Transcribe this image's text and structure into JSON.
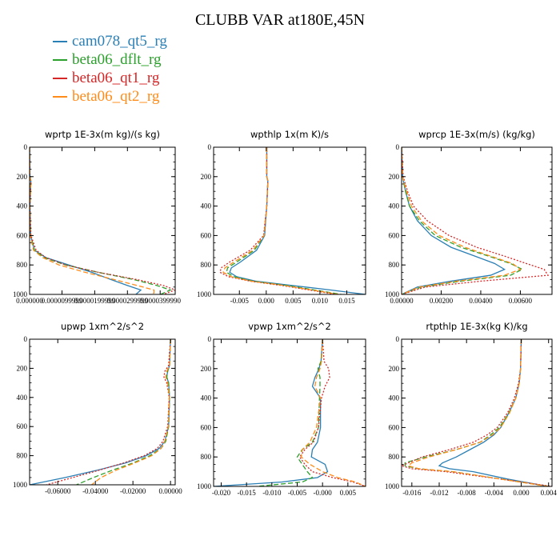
{
  "title": "CLUBB VAR at180E,45N",
  "legend": [
    {
      "name": "cam078_qt5_rg",
      "color": "#2a7fb5"
    },
    {
      "name": "beta06_dflt_rg",
      "color": "#2ca02c"
    },
    {
      "name": "beta06_qt1_rg",
      "color": "#d62728"
    },
    {
      "name": "beta06_qt2_rg",
      "color": "#ff8c1a"
    }
  ],
  "chart_data": [
    {
      "type": "line",
      "title": "wprtp  1E-3x(m kg)/(s kg)",
      "xlim": [
        0,
        4.45e-05
      ],
      "ylim": [
        0,
        1000
      ],
      "y_inverted": true,
      "x_ticks": [
        0,
        9.9e-06,
        1.99e-05,
        2.99e-05,
        3.99e-05
      ],
      "x_tick_labels": [
        "0.000000",
        "0.0000099999",
        "0.0000199999",
        "0.0000299999",
        "0.0000399990"
      ],
      "y_ticks": [
        0,
        200,
        400,
        600,
        800,
        1000
      ],
      "y": [
        0,
        200,
        230,
        400,
        600,
        700,
        750,
        800,
        850,
        900,
        940,
        970,
        990,
        1000
      ],
      "series": [
        {
          "name": "cam078_qt5_rg",
          "values": [
            0,
            1e-07,
            4e-07,
            1e-07,
            3e-07,
            1.5e-06,
            5e-06,
            1.2e-05,
            1.9e-05,
            2.5e-05,
            3e-05,
            3.4e-05,
            3.3e-05,
            3.25e-05
          ]
        },
        {
          "name": "beta06_dflt_rg",
          "values": [
            0,
            1e-07,
            4e-07,
            1e-07,
            3e-07,
            1.5e-06,
            4.5e-06,
            1.1e-05,
            2.1e-05,
            3.2e-05,
            3.9e-05,
            4.3e-05,
            4.1e-05,
            4e-05
          ]
        },
        {
          "name": "beta06_qt1_rg",
          "values": [
            0,
            1e-07,
            4e-07,
            1e-07,
            4e-07,
            2e-06,
            5e-06,
            1.1e-05,
            2.1e-05,
            3.3e-05,
            4.1e-05,
            4.45e-05,
            4.2e-05,
            4.1e-05
          ]
        },
        {
          "name": "beta06_qt2_rg",
          "values": [
            0,
            1e-07,
            4e-07,
            1e-07,
            2e-07,
            1.2e-06,
            4e-06,
            9e-06,
            1.7e-05,
            2.6e-05,
            3.3e-05,
            3.8e-05,
            3.8e-05,
            3.7e-05
          ]
        }
      ]
    },
    {
      "type": "line",
      "title": "wpthlp  1x(m K)/s",
      "xlim": [
        -0.0098,
        0.0185
      ],
      "ylim": [
        0,
        1000
      ],
      "y_inverted": true,
      "x_ticks": [
        -0.005,
        0,
        0.005,
        0.01,
        0.015
      ],
      "x_tick_labels": [
        "-0.005",
        "0.000",
        "0.005",
        "0.010",
        "0.015"
      ],
      "y_ticks": [
        0,
        200,
        400,
        600,
        800,
        1000
      ],
      "y": [
        0,
        200,
        230,
        400,
        600,
        700,
        780,
        820,
        850,
        880,
        910,
        940,
        970,
        1000
      ],
      "series": [
        {
          "name": "cam078_qt5_rg",
          "values": [
            0.0001,
            0.0001,
            0.0003,
            0.0001,
            -0.0003,
            -0.0018,
            -0.0048,
            -0.0065,
            -0.0068,
            -0.0055,
            -0.002,
            0.005,
            0.012,
            0.0185
          ]
        },
        {
          "name": "beta06_dflt_rg",
          "values": [
            0.0001,
            0.0001,
            0.0003,
            0.0001,
            -0.0004,
            -0.0022,
            -0.0055,
            -0.0072,
            -0.0074,
            -0.006,
            -0.0025,
            0.004,
            0.009,
            0.014
          ]
        },
        {
          "name": "beta06_qt1_rg",
          "values": [
            0.0001,
            0.0001,
            0.0003,
            0.0001,
            -0.0005,
            -0.003,
            -0.0068,
            -0.0084,
            -0.0086,
            -0.007,
            -0.003,
            0.003,
            0.008,
            0.013
          ]
        },
        {
          "name": "beta06_qt2_rg",
          "values": [
            0.0001,
            0.0001,
            0.0003,
            0.0001,
            -0.0004,
            -0.0025,
            -0.006,
            -0.0077,
            -0.008,
            -0.0065,
            -0.0028,
            0.0035,
            0.0085,
            0.0135
          ]
        }
      ]
    },
    {
      "type": "line",
      "title": "wprcp  1E-3x(m/s) (kg/kg)",
      "xlim": [
        0,
        0.0076
      ],
      "ylim": [
        0,
        1000
      ],
      "y_inverted": true,
      "x_ticks": [
        0,
        0.002,
        0.004,
        0.006
      ],
      "x_tick_labels": [
        "0.00000",
        "0.00200",
        "0.00400",
        "0.00600"
      ],
      "y_ticks": [
        0,
        200,
        400,
        600,
        800,
        1000
      ],
      "y": [
        0,
        200,
        300,
        400,
        500,
        600,
        680,
        740,
        790,
        830,
        870,
        910,
        950,
        1000
      ],
      "series": [
        {
          "name": "cam078_qt5_rg",
          "values": [
            0,
            5e-05,
            0.0002,
            0.0004,
            0.0008,
            0.0015,
            0.0025,
            0.0037,
            0.0047,
            0.0052,
            0.0045,
            0.0025,
            0.0008,
            0
          ]
        },
        {
          "name": "beta06_dflt_rg",
          "values": [
            0,
            5e-05,
            0.0002,
            0.0004,
            0.0009,
            0.0017,
            0.003,
            0.0044,
            0.0055,
            0.0061,
            0.0055,
            0.003,
            0.001,
            0
          ]
        },
        {
          "name": "beta06_qt1_rg",
          "values": [
            0,
            8e-05,
            0.0003,
            0.0006,
            0.0013,
            0.0024,
            0.0038,
            0.0052,
            0.0063,
            0.0072,
            0.0074,
            0.004,
            0.0012,
            0
          ]
        },
        {
          "name": "beta06_qt2_rg",
          "values": [
            0,
            5e-05,
            0.00025,
            0.0005,
            0.001,
            0.0019,
            0.0032,
            0.0045,
            0.0056,
            0.006,
            0.0052,
            0.0028,
            0.0009,
            0
          ]
        }
      ]
    },
    {
      "type": "line",
      "title": "upwp  1xm^2/s^2",
      "xlim": [
        -0.075,
        0.0025
      ],
      "ylim": [
        0,
        1000
      ],
      "y_inverted": true,
      "x_ticks": [
        -0.06,
        -0.04,
        -0.02,
        0
      ],
      "x_tick_labels": [
        "-0.06000",
        "-0.04000",
        "-0.02000",
        "0.00000"
      ],
      "y_ticks": [
        0,
        200,
        400,
        600,
        800,
        1000
      ],
      "y": [
        0,
        180,
        220,
        260,
        300,
        400,
        600,
        700,
        750,
        800,
        850,
        900,
        950,
        1000
      ],
      "series": [
        {
          "name": "cam078_qt5_rg",
          "values": [
            0,
            -0.0005,
            -0.0015,
            -0.002,
            -0.001,
            -0.0005,
            -0.001,
            -0.003,
            -0.006,
            -0.013,
            -0.024,
            -0.039,
            -0.056,
            -0.075
          ]
        },
        {
          "name": "beta06_dflt_rg",
          "values": [
            0,
            -0.0005,
            -0.0015,
            -0.002,
            -0.001,
            -0.0005,
            -0.001,
            -0.0025,
            -0.005,
            -0.011,
            -0.02,
            -0.031,
            -0.041,
            -0.05
          ]
        },
        {
          "name": "beta06_qt1_rg",
          "values": [
            0,
            -0.001,
            -0.003,
            -0.0035,
            -0.002,
            -0.0007,
            -0.0015,
            -0.004,
            -0.007,
            -0.014,
            -0.025,
            -0.038,
            -0.052,
            -0.066
          ]
        },
        {
          "name": "beta06_qt2_rg",
          "values": [
            0,
            -0.0005,
            -0.002,
            -0.0025,
            -0.0015,
            -0.0006,
            -0.0012,
            -0.003,
            -0.005,
            -0.01,
            -0.019,
            -0.029,
            -0.037,
            -0.042
          ]
        }
      ]
    },
    {
      "type": "line",
      "title": "vpwp  1xm^2/s^2",
      "xlim": [
        -0.0215,
        0.0085
      ],
      "ylim": [
        0,
        1000
      ],
      "y_inverted": true,
      "x_ticks": [
        -0.02,
        -0.015,
        -0.01,
        -0.005,
        0,
        0.005
      ],
      "x_tick_labels": [
        "-0.020",
        "-0.015",
        "-0.010",
        "-0.005",
        "-0.000",
        "0.005"
      ],
      "y_ticks": [
        0,
        200,
        400,
        600,
        800,
        1000
      ],
      "y": [
        0,
        150,
        200,
        260,
        320,
        400,
        600,
        700,
        750,
        800,
        850,
        900,
        940,
        970,
        1000
      ],
      "series": [
        {
          "name": "cam078_qt5_rg",
          "values": [
            0,
            -0.0003,
            -0.0007,
            -0.0015,
            -0.002,
            -0.0004,
            -0.0004,
            -0.001,
            -0.002,
            -0.0022,
            0.0005,
            0.001,
            -0.001,
            -0.008,
            -0.0215
          ]
        },
        {
          "name": "beta06_dflt_rg",
          "values": [
            0,
            -0.0003,
            -0.0009,
            -0.0005,
            -0.0005,
            -0.0006,
            -0.0008,
            -0.002,
            -0.004,
            -0.005,
            -0.004,
            -0.003,
            -0.002,
            -0.004,
            -0.013
          ]
        },
        {
          "name": "beta06_qt1_rg",
          "values": [
            0,
            0.0003,
            0.0012,
            0.0014,
            0.0005,
            -0.0002,
            -0.0008,
            -0.0018,
            -0.0035,
            -0.0045,
            -0.0035,
            -0.002,
            0.002,
            0.006,
            0.0085
          ]
        },
        {
          "name": "beta06_qt2_rg",
          "values": [
            0,
            -0.0002,
            -0.0005,
            -0.0012,
            -0.0015,
            -0.0004,
            -0.0012,
            -0.0025,
            -0.004,
            -0.0042,
            -0.0025,
            0,
            0.003,
            0.0065,
            0.0085
          ]
        }
      ]
    },
    {
      "type": "line",
      "title": "rtpthlp  1E-3x(kg K)/kg",
      "xlim": [
        -0.0175,
        0.0045
      ],
      "ylim": [
        0,
        1000
      ],
      "y_inverted": true,
      "x_ticks": [
        -0.016,
        -0.012,
        -0.008,
        -0.004,
        0,
        0.004
      ],
      "x_tick_labels": [
        "-0.016",
        "-0.012",
        "-0.008",
        "-0.004",
        "0.000",
        "0.004"
      ],
      "y_ticks": [
        0,
        200,
        400,
        600,
        800,
        1000
      ],
      "y": [
        0,
        200,
        300,
        400,
        500,
        600,
        650,
        700,
        750,
        800,
        840,
        860,
        880,
        900,
        950,
        1000
      ],
      "series": [
        {
          "name": "cam078_qt5_rg",
          "values": [
            0,
            -0.0001,
            -0.0003,
            -0.0008,
            -0.0018,
            -0.003,
            -0.004,
            -0.0055,
            -0.0075,
            -0.0095,
            -0.0115,
            -0.012,
            -0.0105,
            -0.007,
            -0.002,
            0.004
          ]
        },
        {
          "name": "beta06_dflt_rg",
          "values": [
            0,
            -0.0001,
            -0.0003,
            -0.0008,
            -0.0018,
            -0.0032,
            -0.0045,
            -0.006,
            -0.0095,
            -0.014,
            -0.017,
            -0.017,
            -0.015,
            -0.01,
            -0.003,
            0.004
          ]
        },
        {
          "name": "beta06_qt1_rg",
          "values": [
            0,
            -0.0001,
            -0.0004,
            -0.001,
            -0.002,
            -0.0035,
            -0.005,
            -0.007,
            -0.0105,
            -0.0145,
            -0.0165,
            -0.0175,
            -0.016,
            -0.011,
            -0.003,
            0.0045
          ]
        },
        {
          "name": "beta06_qt2_rg",
          "values": [
            0,
            -0.0001,
            -0.0003,
            -0.0008,
            -0.0017,
            -0.003,
            -0.0042,
            -0.006,
            -0.0095,
            -0.0135,
            -0.016,
            -0.0165,
            -0.015,
            -0.01,
            -0.003,
            0.004
          ]
        }
      ]
    }
  ]
}
